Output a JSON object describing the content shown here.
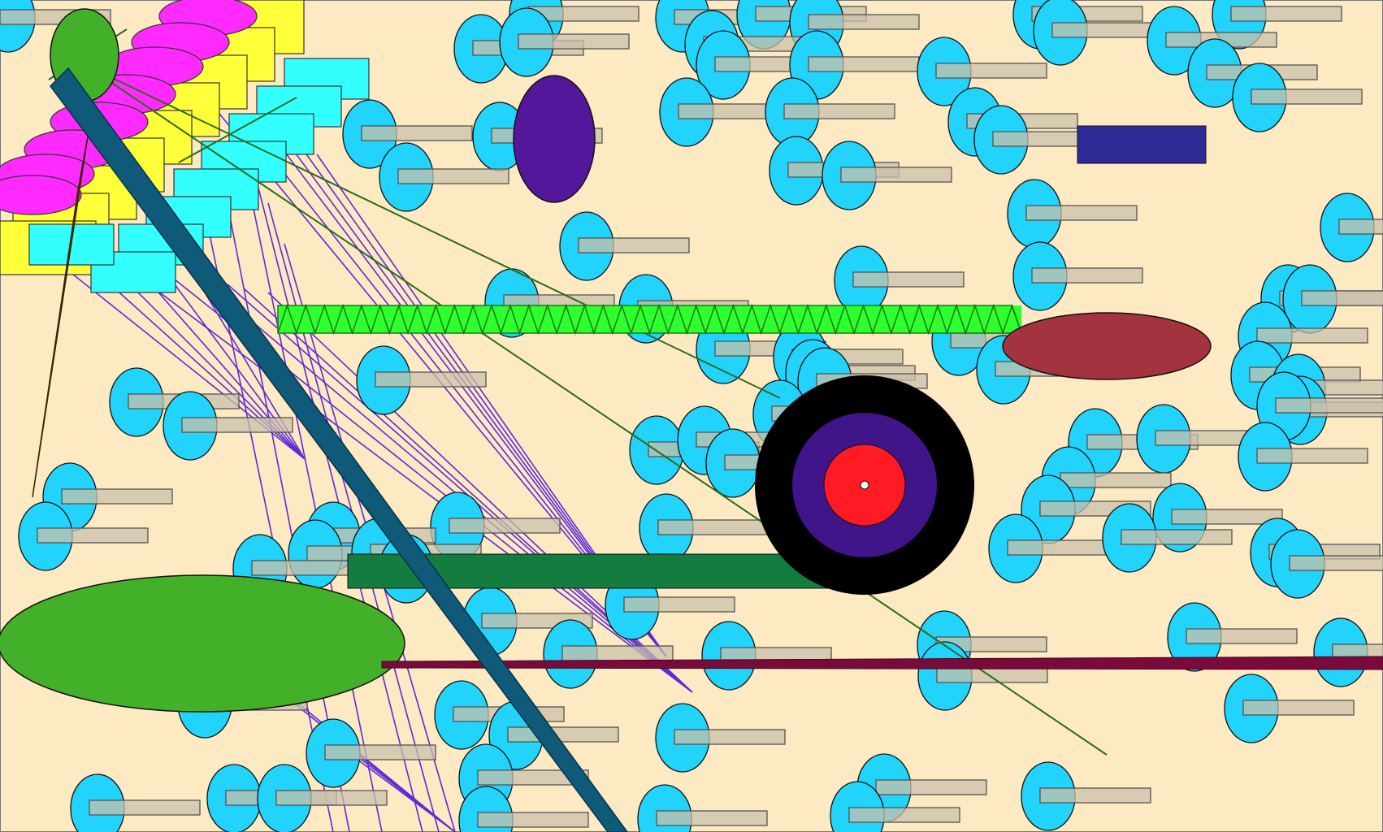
{
  "palette": {
    "background": "#fde9c2",
    "cell_body": "#22d3fb",
    "cell_bar": "#a9a9a9",
    "bar_alt": "#c9c0ab",
    "magenta": "#ff2aff",
    "yellow": "#ffff3a",
    "cyan_block": "#33ffff",
    "olive_green": "#43b02a",
    "teal_beam": "#0e5a78",
    "brown_spike": "#8a4a10",
    "spike_green": "#2eff2e",
    "purple_oval": "#54169a",
    "navy_block": "#2e2a96",
    "maroon_oval": "#a3333f",
    "dark_green_bar": "#127d3f",
    "wine_line": "#7a0a3c",
    "target_outer": "#000000",
    "target_middle": "#3f1589",
    "target_inner": "#ff1a24",
    "web_lines": "#5f2ad8",
    "thin_green_lines": "#2d6b17"
  },
  "icons": {
    "cell": "cell-icon",
    "target": "target-icon"
  }
}
